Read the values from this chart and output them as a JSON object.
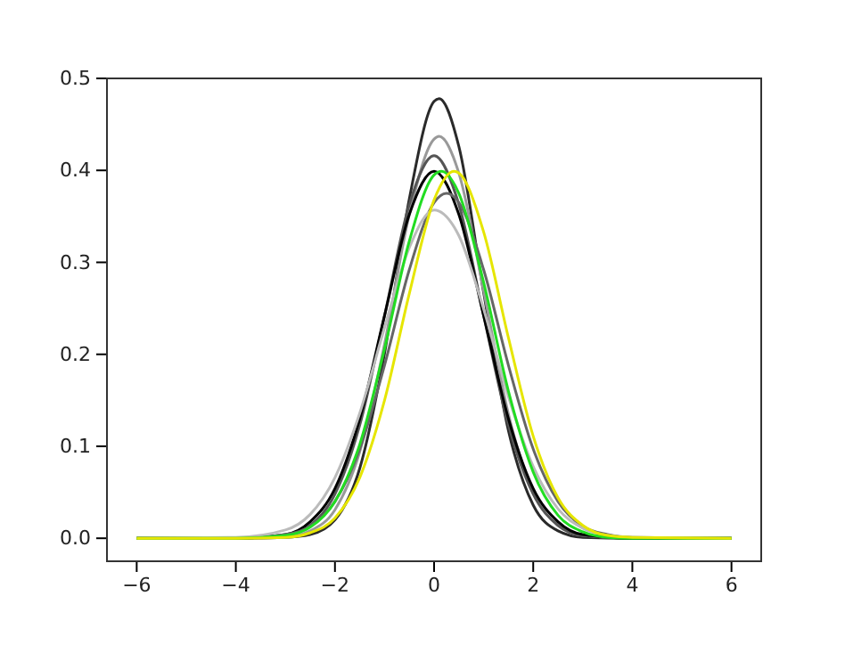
{
  "chart_data": {
    "type": "line",
    "xlim": [
      -6.6,
      6.6
    ],
    "xticks": [
      {
        "value": -6,
        "label": "−6"
      },
      {
        "value": -4,
        "label": "−4"
      },
      {
        "value": -2,
        "label": "−2"
      },
      0,
      2,
      4,
      6
    ],
    "ylim": [
      -0.025,
      0.5
    ],
    "yticks": [
      {
        "value": 0,
        "label": "0.0"
      },
      0.1,
      0.2,
      0.3,
      0.4,
      0.5
    ],
    "grid": false,
    "marker": "none",
    "line_style": "solid",
    "series": [
      {
        "color": "#2a2a2a",
        "x": [
          -6,
          -4,
          -3,
          -2.5,
          -2,
          -1.5,
          -1,
          -0.5,
          0,
          0.1,
          0.5,
          1,
          1.5,
          2,
          2.5,
          3,
          4,
          6
        ],
        "values": [
          0,
          0,
          0.001,
          0.004,
          0.02,
          0.076,
          0.201,
          0.369,
          0.475,
          0.478,
          0.426,
          0.267,
          0.117,
          0.036,
          0.008,
          0.001,
          0,
          0
        ]
      },
      {
        "color": "#999999",
        "x": [
          -6,
          -4,
          -3,
          -2.5,
          -2,
          -1.5,
          -1,
          -0.5,
          0,
          0.1,
          0.5,
          1,
          1.5,
          2,
          2.5,
          3,
          4,
          6
        ],
        "values": [
          0,
          0,
          0.001,
          0.008,
          0.031,
          0.094,
          0.211,
          0.352,
          0.434,
          0.437,
          0.397,
          0.269,
          0.135,
          0.05,
          0.014,
          0.003,
          0,
          0
        ]
      },
      {
        "color": "#555555",
        "x": [
          -6,
          -4,
          -3,
          -2.5,
          -2,
          -1.5,
          -1,
          -0.5,
          0,
          0.5,
          1,
          1.5,
          2,
          2.5,
          3,
          4,
          6
        ],
        "values": [
          0,
          0,
          0.003,
          0.014,
          0.048,
          0.123,
          0.242,
          0.363,
          0.416,
          0.363,
          0.242,
          0.123,
          0.048,
          0.014,
          0.003,
          0,
          0
        ]
      },
      {
        "color": "#000000",
        "x": [
          -6,
          -4,
          -3,
          -2.5,
          -2,
          -1.5,
          -1,
          -0.5,
          0,
          0.5,
          1,
          1.5,
          2,
          2.5,
          3,
          4,
          6
        ],
        "values": [
          0,
          0,
          0.004,
          0.018,
          0.054,
          0.13,
          0.242,
          0.352,
          0.399,
          0.352,
          0.242,
          0.13,
          0.054,
          0.018,
          0.004,
          0,
          0
        ]
      },
      {
        "color": "#666666",
        "x": [
          -6,
          -4,
          -3,
          -2.5,
          -2,
          -1.5,
          -1,
          -0.5,
          0,
          0.25,
          0.5,
          1,
          1.5,
          2,
          2.5,
          3,
          3.5,
          4,
          6
        ],
        "values": [
          0,
          0,
          0.004,
          0.013,
          0.04,
          0.097,
          0.188,
          0.292,
          0.365,
          0.375,
          0.365,
          0.292,
          0.188,
          0.097,
          0.04,
          0.013,
          0.004,
          0.001,
          0
        ]
      },
      {
        "color": "#bbbbbb",
        "x": [
          -6,
          -4,
          -3,
          -2.5,
          -2,
          -1.5,
          -1,
          -0.5,
          0,
          0.5,
          1,
          1.5,
          2,
          2.5,
          3,
          3.5,
          4,
          6
        ],
        "values": [
          0,
          0.001,
          0.009,
          0.026,
          0.066,
          0.136,
          0.229,
          0.316,
          0.357,
          0.329,
          0.249,
          0.154,
          0.078,
          0.032,
          0.011,
          0.003,
          0.001,
          0
        ]
      },
      {
        "color": "#22dd22",
        "x": [
          -6,
          -4,
          -3,
          -2.5,
          -2,
          -1.5,
          -1,
          -0.5,
          0,
          0.15,
          0.5,
          1,
          1.5,
          2,
          2.5,
          3,
          3.5,
          4,
          6
        ],
        "values": [
          0,
          0,
          0.003,
          0.012,
          0.04,
          0.102,
          0.206,
          0.323,
          0.395,
          0.399,
          0.375,
          0.278,
          0.16,
          0.072,
          0.025,
          0.007,
          0.001,
          0,
          0
        ]
      },
      {
        "color": "#e6e600",
        "x": [
          -6,
          -4,
          -3,
          -2.5,
          -2,
          -1.5,
          -1,
          -0.5,
          0,
          0.4,
          0.5,
          1,
          1.5,
          2,
          2.5,
          3,
          3.5,
          4,
          6
        ],
        "values": [
          0,
          0,
          0.001,
          0.006,
          0.022,
          0.066,
          0.15,
          0.266,
          0.368,
          0.399,
          0.397,
          0.333,
          0.218,
          0.111,
          0.044,
          0.014,
          0.003,
          0.001,
          0
        ]
      }
    ]
  }
}
